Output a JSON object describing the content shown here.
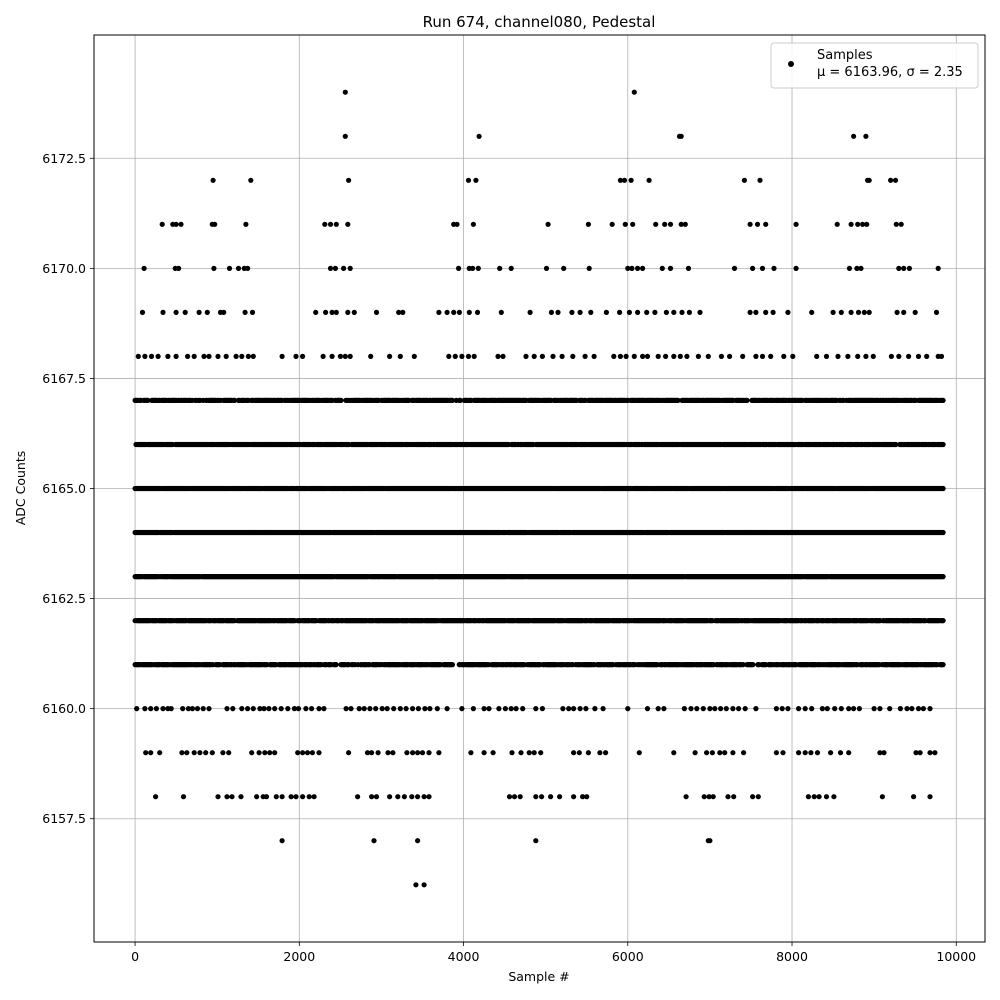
{
  "chart_data": {
    "type": "scatter",
    "title": "Run 674, channel080, Pedestal",
    "xlabel": "Sample #",
    "ylabel": "ADC Counts",
    "xlim": [
      -500,
      10350
    ],
    "ylim": [
      6154.7,
      6175.3
    ],
    "xticks": [
      0,
      2000,
      4000,
      6000,
      8000,
      10000
    ],
    "xtick_labels": [
      "0",
      "2000",
      "4000",
      "6000",
      "8000",
      "10000"
    ],
    "yticks": [
      6157.5,
      6160.0,
      6162.5,
      6165.0,
      6167.5,
      6170.0,
      6172.5
    ],
    "ytick_labels": [
      "6157.5",
      "6160.0",
      "6162.5",
      "6165.0",
      "6167.5",
      "6170.0",
      "6172.5"
    ],
    "grid": true,
    "legend": {
      "placement": "top-right",
      "series_label": "Samples",
      "stats_label": "μ = 6163.96, σ = 2.35"
    },
    "marker_color": "#000000",
    "series": [
      {
        "name": "Samples",
        "levels": [
          {
            "y": 6174,
            "x": [
              2560,
              6080
            ]
          },
          {
            "y": 6173,
            "x": [
              2560,
              4190,
              6630,
              6650,
              8750,
              8900
            ]
          },
          {
            "y": 6172,
            "x": [
              950,
              1410,
              2600,
              4060,
              4150,
              5910,
              5960,
              6040,
              6260,
              7420,
              7610,
              8920,
              8940,
              9200,
              9260
            ]
          },
          {
            "y": 6171,
            "x": [
              330,
              460,
              500,
              560,
              940,
              970,
              1350,
              2310,
              2380,
              2450,
              2590,
              3880,
              3920,
              4120,
              5030,
              5520,
              5810,
              5970,
              6060,
              6340,
              6450,
              6520,
              6650,
              6700,
              7490,
              7580,
              7680,
              8050,
              8550,
              8720,
              8800,
              8860,
              8910,
              9270,
              9330
            ]
          },
          {
            "y": 6170,
            "x": [
              110,
              490,
              530,
              960,
              1150,
              1260,
              1330,
              1370,
              2380,
              2440,
              2540,
              2620,
              3940,
              4070,
              4110,
              4180,
              4440,
              4580,
              5010,
              5220,
              5530,
              6000,
              6050,
              6120,
              6180,
              6420,
              6520,
              6740,
              7300,
              7520,
              7640,
              7780,
              8050,
              8700,
              8790,
              8840,
              9300,
              9360,
              9430,
              9780
            ]
          },
          {
            "y": 6169,
            "x": [
              90,
              340,
              500,
              610,
              780,
              880,
              1040,
              1080,
              1340,
              1430,
              2200,
              2320,
              2400,
              2450,
              2590,
              2670,
              2940,
              3210,
              3260,
              3700,
              3800,
              3880,
              3950,
              4070,
              4170,
              4460,
              4810,
              5070,
              5150,
              5320,
              5420,
              5550,
              5740,
              5900,
              6020,
              6120,
              6230,
              6330,
              6470,
              6560,
              6660,
              6750,
              6880,
              7490,
              7560,
              7680,
              7770,
              7950,
              8240,
              8500,
              8600,
              8720,
              8810,
              8880,
              8940,
              9280,
              9360,
              9500,
              9760
            ]
          },
          {
            "y": 6168,
            "x": [
              40,
              120,
              200,
              280,
              400,
              500,
              640,
              720,
              840,
              900,
              1010,
              1110,
              1230,
              1300,
              1380,
              1440,
              1790,
              1960,
              2040,
              2290,
              2400,
              2500,
              2560,
              2620,
              2870,
              3100,
              3230,
              3400,
              3820,
              3900,
              3980,
              4060,
              4130,
              4420,
              4480,
              4760,
              4860,
              4960,
              5090,
              5200,
              5330,
              5480,
              5590,
              5830,
              5910,
              5980,
              6080,
              6180,
              6240,
              6370,
              6460,
              6560,
              6640,
              6720,
              6860,
              6980,
              7140,
              7240,
              7400,
              7560,
              7640,
              7740,
              7900,
              8010,
              8300,
              8420,
              8560,
              8680,
              8800,
              8900,
              8990,
              9210,
              9300,
              9420,
              9540,
              9640,
              9780,
              9820
            ]
          }
        ],
        "bands": [
          {
            "y": 6167,
            "density": 0.78
          },
          {
            "y": 6166,
            "density": 0.9
          },
          {
            "y": 6165,
            "density": 0.97
          },
          {
            "y": 6164,
            "density": 0.98
          },
          {
            "y": 6163,
            "density": 0.98
          },
          {
            "y": 6162,
            "density": 0.9
          },
          {
            "y": 6161,
            "density": 0.8
          }
        ],
        "sparse_levels": [
          {
            "y": 6160,
            "x": [
              20,
              120,
              190,
              260,
              340,
              400,
              440,
              580,
              650,
              700,
              760,
              830,
              900,
              1120,
              1190,
              1300,
              1370,
              1440,
              1520,
              1570,
              1630,
              1700,
              1780,
              1860,
              1940,
              1990,
              2080,
              2150,
              2240,
              2300,
              2570,
              2630,
              2730,
              2790,
              2860,
              2930,
              3010,
              3070,
              3150,
              3230,
              3300,
              3380,
              3450,
              3530,
              3590,
              3680,
              3800,
              3980,
              4120,
              4250,
              4310,
              4430,
              4510,
              4580,
              4640,
              4720,
              4880,
              4960,
              5210,
              5280,
              5340,
              5420,
              5490,
              5600,
              5700,
              6000,
              6240,
              6370,
              6440,
              6690,
              6770,
              6840,
              6920,
              7000,
              7060,
              7130,
              7200,
              7280,
              7350,
              7430,
              7560,
              7810,
              7880,
              7950,
              8080,
              8160,
              8240,
              8370,
              8430,
              8520,
              8600,
              8690,
              8750,
              8820,
              9000,
              9070,
              9190,
              9320,
              9400,
              9460,
              9540,
              9600,
              9680
            ]
          },
          {
            "y": 6159,
            "x": [
              130,
              190,
              300,
              570,
              630,
              720,
              790,
              860,
              940,
              1070,
              1140,
              1420,
              1510,
              1580,
              1640,
              1700,
              1980,
              2040,
              2100,
              2160,
              2240,
              2600,
              2830,
              2880,
              2960,
              3080,
              3140,
              3310,
              3380,
              3440,
              3500,
              3580,
              3700,
              4090,
              4250,
              4360,
              4590,
              4700,
              4800,
              4860,
              4940,
              5340,
              5410,
              5520,
              5660,
              5730,
              6140,
              6560,
              6820,
              6960,
              7030,
              7120,
              7180,
              7280,
              7410,
              7810,
              7890,
              8080,
              8160,
              8230,
              8310,
              8470,
              8590,
              8690,
              9070,
              9120,
              9510,
              9560,
              9680,
              9740
            ]
          },
          {
            "y": 6158,
            "x": [
              250,
              590,
              1010,
              1120,
              1180,
              1290,
              1480,
              1560,
              1600,
              1720,
              1790,
              1900,
              1960,
              2040,
              2120,
              2180,
              2710,
              2880,
              2940,
              3100,
              3200,
              3280,
              3370,
              3440,
              3520,
              3580,
              4560,
              4620,
              4690,
              4880,
              4950,
              5060,
              5170,
              5340,
              5450,
              5500,
              6710,
              6930,
              6990,
              7040,
              7220,
              7290,
              7520,
              7590,
              8200,
              8270,
              8330,
              8420,
              8510,
              9100,
              9480,
              9680
            ]
          },
          {
            "y": 6157,
            "x": [
              1790,
              2910,
              3440,
              4880,
              6980,
              7000
            ]
          },
          {
            "y": 6156,
            "x": [
              3420,
              3520
            ]
          }
        ]
      }
    ]
  }
}
